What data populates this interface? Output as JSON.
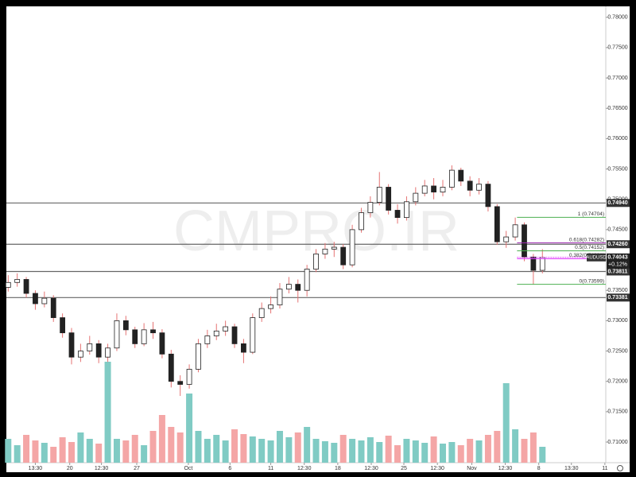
{
  "chart_data": {
    "type": "candlestick",
    "watermark": "CMPRO.IR",
    "symbol": "AUDUSD",
    "last_price": {
      "value": 0.74043,
      "label": "0.74043"
    },
    "change_label": "+0.12%",
    "ylim": [
      0.7066,
      0.7818
    ],
    "yticks": [
      {
        "value": 0.78,
        "label": "0.78000"
      },
      {
        "value": 0.775,
        "label": "0.77500"
      },
      {
        "value": 0.77,
        "label": "0.77000"
      },
      {
        "value": 0.765,
        "label": "0.76500"
      },
      {
        "value": 0.76,
        "label": "0.76000"
      },
      {
        "value": 0.755,
        "label": "0.75500"
      },
      {
        "value": 0.75,
        "label": "0.75000"
      },
      {
        "value": 0.745,
        "label": "0.74500"
      },
      {
        "value": 0.74,
        "label": "0.74000"
      },
      {
        "value": 0.735,
        "label": "0.73500"
      },
      {
        "value": 0.73,
        "label": "0.73000"
      },
      {
        "value": 0.725,
        "label": "0.72500"
      },
      {
        "value": 0.72,
        "label": "0.72000"
      },
      {
        "value": 0.715,
        "label": "0.71500"
      },
      {
        "value": 0.71,
        "label": "0.71000"
      }
    ],
    "xlim": [
      -0.2,
      66
    ],
    "xticks": [
      {
        "value": 3,
        "label": "13:30"
      },
      {
        "value": 6.8,
        "label": "20"
      },
      {
        "value": 10.3,
        "label": "12:30"
      },
      {
        "value": 14.2,
        "label": "27"
      },
      {
        "value": 19.9,
        "label": "Oct"
      },
      {
        "value": 24.5,
        "label": "6"
      },
      {
        "value": 29,
        "label": "11"
      },
      {
        "value": 32.7,
        "label": "12:30"
      },
      {
        "value": 36.4,
        "label": "18"
      },
      {
        "value": 40.1,
        "label": "12:30"
      },
      {
        "value": 43.7,
        "label": "25"
      },
      {
        "value": 47.4,
        "label": "12:30"
      },
      {
        "value": 51.2,
        "label": "Nov"
      },
      {
        "value": 54.9,
        "label": "12:30"
      },
      {
        "value": 58.6,
        "label": "8"
      },
      {
        "value": 62.2,
        "label": "13:30"
      },
      {
        "value": 65.9,
        "label": "11"
      }
    ],
    "up_color": "#ffffff",
    "down_color": "#222222",
    "wick_color": "#e57373",
    "volume_up_color": "#80cbc4",
    "volume_down_color": "#f4a6a6",
    "volume_lim": [
      0,
      150
    ],
    "candles": [
      [
        0.7355,
        0.7375,
        0.7348,
        0.7363
      ],
      [
        0.7363,
        0.7378,
        0.7356,
        0.7368
      ],
      [
        0.7368,
        0.7372,
        0.7338,
        0.7345
      ],
      [
        0.7345,
        0.735,
        0.7318,
        0.7328
      ],
      [
        0.7328,
        0.7348,
        0.7322,
        0.7337
      ],
      [
        0.7337,
        0.7342,
        0.7298,
        0.7305
      ],
      [
        0.7305,
        0.7312,
        0.7272,
        0.728
      ],
      [
        0.728,
        0.7288,
        0.7228,
        0.724
      ],
      [
        0.724,
        0.7262,
        0.7232,
        0.725
      ],
      [
        0.725,
        0.7275,
        0.7244,
        0.7262
      ],
      [
        0.7262,
        0.7268,
        0.723,
        0.724
      ],
      [
        0.724,
        0.7262,
        0.7232,
        0.7255
      ],
      [
        0.7255,
        0.7312,
        0.725,
        0.73
      ],
      [
        0.73,
        0.7308,
        0.7276,
        0.7285
      ],
      [
        0.7285,
        0.729,
        0.7255,
        0.7262
      ],
      [
        0.7262,
        0.7296,
        0.7258,
        0.7285
      ],
      [
        0.7285,
        0.7298,
        0.727,
        0.728
      ],
      [
        0.728,
        0.7286,
        0.7238,
        0.7245
      ],
      [
        0.7245,
        0.7252,
        0.719,
        0.72
      ],
      [
        0.72,
        0.721,
        0.7176,
        0.7195
      ],
      [
        0.7195,
        0.7228,
        0.7188,
        0.722
      ],
      [
        0.722,
        0.727,
        0.7215,
        0.7262
      ],
      [
        0.7262,
        0.7285,
        0.7255,
        0.7275
      ],
      [
        0.7275,
        0.7295,
        0.7268,
        0.7283
      ],
      [
        0.7283,
        0.73,
        0.7275,
        0.729
      ],
      [
        0.729,
        0.7295,
        0.7255,
        0.7262
      ],
      [
        0.7262,
        0.727,
        0.723,
        0.7248
      ],
      [
        0.7248,
        0.7312,
        0.7245,
        0.7305
      ],
      [
        0.7305,
        0.733,
        0.7298,
        0.732
      ],
      [
        0.732,
        0.734,
        0.7312,
        0.7326
      ],
      [
        0.7326,
        0.7362,
        0.732,
        0.7352
      ],
      [
        0.7352,
        0.7372,
        0.7345,
        0.736
      ],
      [
        0.736,
        0.7368,
        0.733,
        0.735
      ],
      [
        0.735,
        0.7392,
        0.734,
        0.7385
      ],
      [
        0.7385,
        0.7418,
        0.738,
        0.741
      ],
      [
        0.741,
        0.7428,
        0.7402,
        0.7418
      ],
      [
        0.7418,
        0.743,
        0.7405,
        0.7421
      ],
      [
        0.7421,
        0.7426,
        0.7385,
        0.7392
      ],
      [
        0.7392,
        0.7458,
        0.7388,
        0.745
      ],
      [
        0.745,
        0.7486,
        0.7445,
        0.7478
      ],
      [
        0.7478,
        0.7505,
        0.747,
        0.7495
      ],
      [
        0.7495,
        0.7545,
        0.749,
        0.752
      ],
      [
        0.752,
        0.7525,
        0.7475,
        0.7482
      ],
      [
        0.7482,
        0.7492,
        0.746,
        0.747
      ],
      [
        0.747,
        0.7505,
        0.7465,
        0.7496
      ],
      [
        0.7496,
        0.752,
        0.749,
        0.751
      ],
      [
        0.751,
        0.7532,
        0.7505,
        0.7522
      ],
      [
        0.7522,
        0.7535,
        0.75,
        0.7512
      ],
      [
        0.7512,
        0.7532,
        0.7505,
        0.752
      ],
      [
        0.752,
        0.7556,
        0.7515,
        0.7548
      ],
      [
        0.7548,
        0.7552,
        0.7522,
        0.753
      ],
      [
        0.753,
        0.7538,
        0.7505,
        0.7515
      ],
      [
        0.7515,
        0.7535,
        0.7508,
        0.7525
      ],
      [
        0.7525,
        0.753,
        0.748,
        0.7488
      ],
      [
        0.7488,
        0.7492,
        0.7425,
        0.743
      ],
      [
        0.743,
        0.7448,
        0.742,
        0.7438
      ],
      [
        0.7438,
        0.747,
        0.7432,
        0.7458
      ],
      [
        0.7458,
        0.7462,
        0.7398,
        0.7405
      ],
      [
        0.7405,
        0.741,
        0.736,
        0.7383
      ],
      [
        0.7383,
        0.7418,
        0.7378,
        0.74043
      ]
    ],
    "volumes": [
      30,
      22,
      35,
      28,
      25,
      20,
      32,
      26,
      38,
      30,
      24,
      127,
      30,
      28,
      35,
      22,
      40,
      60,
      45,
      38,
      87,
      40,
      30,
      35,
      28,
      42,
      36,
      33,
      30,
      28,
      40,
      32,
      38,
      45,
      30,
      27,
      25,
      35,
      30,
      28,
      32,
      26,
      34,
      22,
      30,
      28,
      25,
      33,
      24,
      26,
      22,
      30,
      28,
      35,
      40,
      100,
      42,
      30,
      38,
      20
    ],
    "hlines": [
      {
        "value": 0.7494,
        "label": "0.74940"
      },
      {
        "value": 0.7426,
        "label": "0.74260"
      },
      {
        "value": 0.73811,
        "label": "0.73811"
      },
      {
        "value": 0.73381,
        "label": "0.73381"
      }
    ],
    "fib": {
      "x_start": 56.2,
      "levels": [
        {
          "value": 0.74704,
          "label": "1 (0.74704)",
          "color": "#4caf50"
        },
        {
          "value": 0.74282,
          "label": "0.618(0.74282)",
          "color": "#9c27b0"
        },
        {
          "value": 0.74152,
          "label": "0.5(0.74152)",
          "color": "#4caf50"
        },
        {
          "value": 0.74021,
          "label": "0.382(0.74021)",
          "color": "#e040fb"
        },
        {
          "value": 0.73599,
          "label": "0(0.73599)",
          "color": "#4caf50"
        }
      ]
    }
  }
}
